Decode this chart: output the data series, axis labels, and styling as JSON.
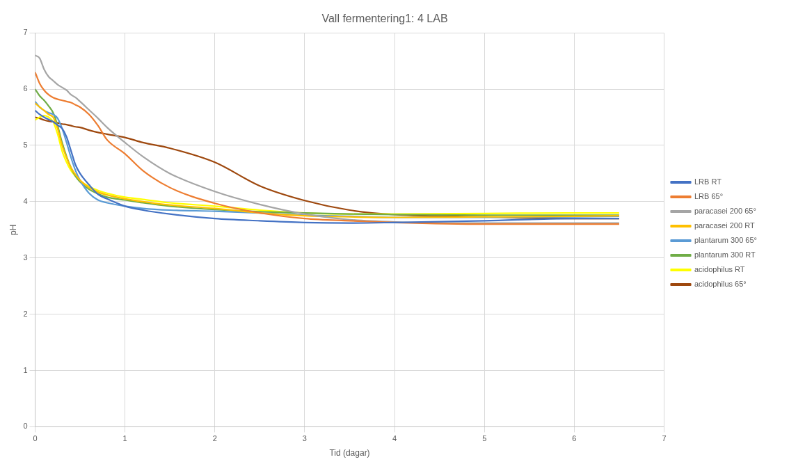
{
  "chart_data": {
    "type": "line",
    "title": "Vall fermentering1: 4 LAB",
    "xlabel": "Tid (dagar)",
    "ylabel": "pH",
    "x": [
      0,
      0.05,
      0.1,
      0.15,
      0.2,
      0.25,
      0.3,
      0.35,
      0.4,
      0.45,
      0.5,
      0.6,
      0.7,
      0.8,
      1,
      1.2,
      1.5,
      2,
      2.5,
      3,
      3.5,
      4,
      5,
      6,
      6.5
    ],
    "xlim": [
      0,
      7
    ],
    "xticks": [
      0,
      1,
      2,
      3,
      4,
      5,
      6,
      7
    ],
    "ylim": [
      0,
      7
    ],
    "yticks": [
      0,
      1,
      2,
      3,
      4,
      5,
      6,
      7
    ],
    "grid": true,
    "legend": "right",
    "marker": "none",
    "line_style": "solid",
    "series": [
      {
        "name": "LRB RT",
        "color": "#4472c4",
        "values": [
          5.62,
          5.55,
          5.5,
          5.46,
          5.42,
          5.36,
          5.3,
          5.15,
          4.9,
          4.65,
          4.5,
          4.3,
          4.13,
          4.05,
          3.92,
          3.85,
          3.78,
          3.7,
          3.66,
          3.63,
          3.62,
          3.63,
          3.66,
          3.7,
          3.7
        ]
      },
      {
        "name": "LRB 65°",
        "color": "#ed7d31",
        "values": [
          6.3,
          6.1,
          5.98,
          5.9,
          5.85,
          5.82,
          5.8,
          5.78,
          5.76,
          5.72,
          5.68,
          5.55,
          5.35,
          5.1,
          4.85,
          4.55,
          4.25,
          3.97,
          3.8,
          3.7,
          3.66,
          3.63,
          3.6,
          3.6,
          3.6
        ]
      },
      {
        "name": "paracasei 200 65°",
        "color": "#a5a5a5",
        "values": [
          6.6,
          6.55,
          6.35,
          6.22,
          6.15,
          6.08,
          6.03,
          5.98,
          5.9,
          5.85,
          5.78,
          5.63,
          5.48,
          5.32,
          5.05,
          4.8,
          4.5,
          4.18,
          3.95,
          3.78,
          3.68,
          3.64,
          3.62,
          3.62,
          3.62
        ]
      },
      {
        "name": "paracasei 200 RT",
        "color": "#ffc000",
        "values": [
          5.75,
          5.68,
          5.62,
          5.55,
          5.5,
          5.3,
          5.0,
          4.78,
          4.6,
          4.48,
          4.38,
          4.25,
          4.17,
          4.12,
          4.05,
          4.0,
          3.94,
          3.88,
          3.8,
          3.75,
          3.73,
          3.72,
          3.73,
          3.74,
          3.75
        ]
      },
      {
        "name": "plantarum 300 65°",
        "color": "#5b9bd5",
        "values": [
          5.78,
          5.68,
          5.62,
          5.58,
          5.55,
          5.48,
          5.3,
          5.05,
          4.78,
          4.55,
          4.38,
          4.15,
          4.03,
          3.98,
          3.92,
          3.88,
          3.85,
          3.83,
          3.8,
          3.76,
          3.74,
          3.72,
          3.72,
          3.73,
          3.74
        ]
      },
      {
        "name": "plantarum 300 RT",
        "color": "#70ad47",
        "values": [
          6.0,
          5.88,
          5.8,
          5.7,
          5.58,
          5.35,
          5.05,
          4.8,
          4.6,
          4.45,
          4.35,
          4.22,
          4.14,
          4.08,
          4.03,
          3.98,
          3.92,
          3.86,
          3.82,
          3.8,
          3.78,
          3.77,
          3.76,
          3.76,
          3.76
        ]
      },
      {
        "name": "acidophilus RT",
        "color": "#ffff00",
        "values": [
          5.45,
          5.5,
          5.53,
          5.5,
          5.42,
          5.2,
          4.9,
          4.7,
          4.55,
          4.45,
          4.37,
          4.27,
          4.2,
          4.15,
          4.08,
          4.04,
          3.98,
          3.92,
          3.85,
          3.8,
          3.78,
          3.78,
          3.79,
          3.8,
          3.8
        ]
      },
      {
        "name": "acidophilus 65°",
        "color": "#9e480e",
        "values": [
          5.5,
          5.48,
          5.45,
          5.43,
          5.42,
          5.4,
          5.38,
          5.37,
          5.35,
          5.33,
          5.32,
          5.27,
          5.23,
          5.2,
          5.14,
          5.05,
          4.95,
          4.7,
          4.28,
          4.02,
          3.85,
          3.77,
          3.73,
          3.7,
          3.7
        ]
      }
    ]
  }
}
